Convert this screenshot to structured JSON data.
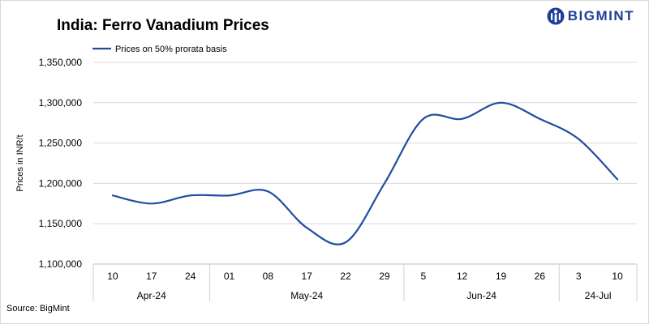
{
  "header": {
    "title": "India: Ferro Vanadium Prices",
    "logo_text": "BIGMINT",
    "logo_icon": "bigmint-logo-icon"
  },
  "footer": {
    "source": "Source: BigMint"
  },
  "chart_data": {
    "type": "line",
    "ylabel": "Prices in INR/t",
    "ylim": [
      1100000,
      1350000
    ],
    "yticks": [
      1100000,
      1150000,
      1200000,
      1250000,
      1300000,
      1350000
    ],
    "ytick_labels": [
      "1,100,000",
      "1,150,000",
      "1,200,000",
      "1,250,000",
      "1,300,000",
      "1,350,000"
    ],
    "categories": [
      "10",
      "17",
      "24",
      "01",
      "08",
      "17",
      "22",
      "29",
      "5",
      "12",
      "19",
      "26",
      "3",
      "10"
    ],
    "groups": [
      {
        "label": "Apr-24",
        "count": 3
      },
      {
        "label": "May-24",
        "count": 5
      },
      {
        "label": "Jun-24",
        "count": 4
      },
      {
        "label": "24-Jul",
        "count": 2
      }
    ],
    "legend": {
      "position": "top-left"
    },
    "grid": true,
    "series": [
      {
        "name": "Prices on 50% prorata basis",
        "color": "#1f4e9e",
        "values": [
          1185000,
          1175000,
          1185000,
          1185000,
          1190000,
          1145000,
          1127000,
          1200000,
          1280000,
          1280000,
          1300000,
          1280000,
          1255000,
          1205000
        ]
      }
    ]
  }
}
